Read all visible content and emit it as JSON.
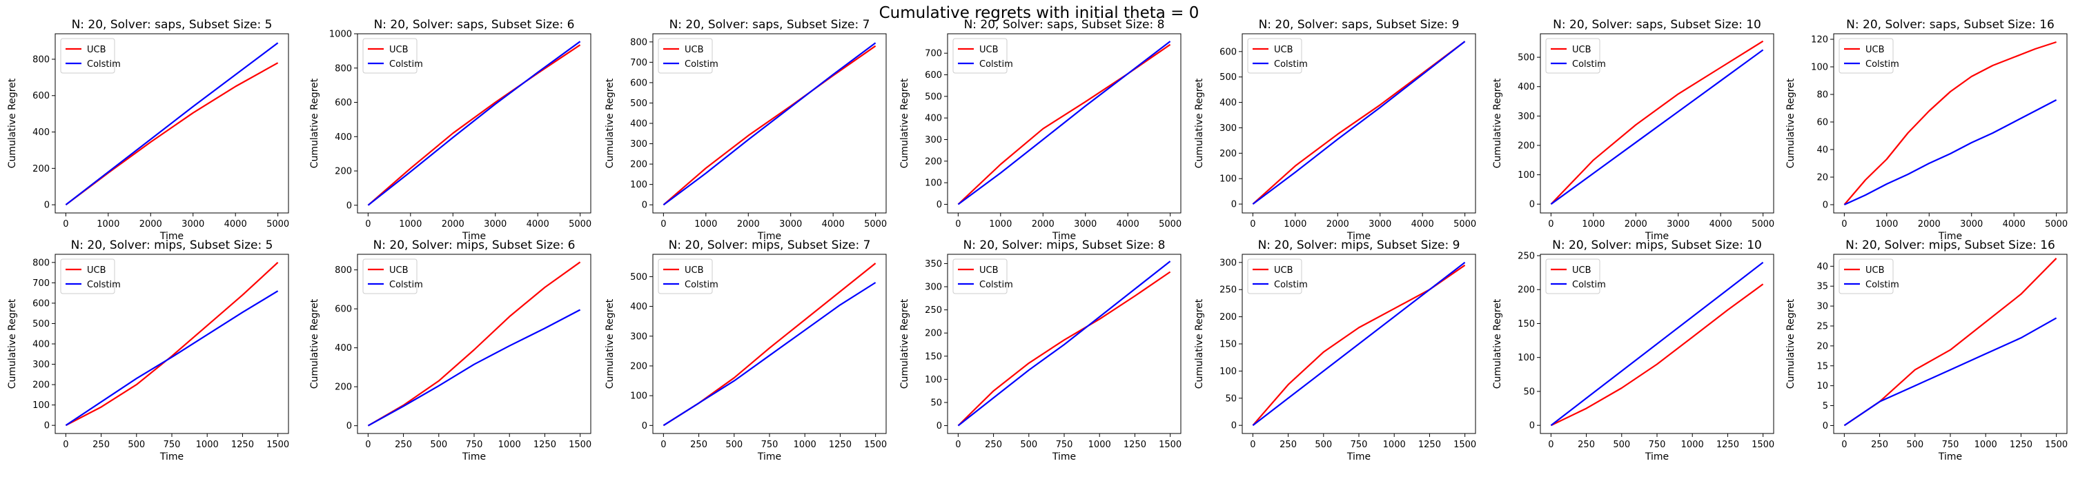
{
  "figure": {
    "title": "Cumulative regrets with initial theta = 0"
  },
  "colors": {
    "UCB": "#ff0000",
    "Colstim": "#0000ff"
  },
  "chart_data": [
    {
      "type": "line",
      "title": "N: 20, Solver: saps, Subset Size: 5",
      "xlabel": "Time",
      "ylabel": "Cumulative Regret",
      "xlim": [
        -250,
        5250
      ],
      "ylim": [
        -45,
        940
      ],
      "xticks": [
        0,
        1000,
        2000,
        3000,
        4000,
        5000
      ],
      "yticks": [
        0,
        200,
        400,
        600,
        800
      ],
      "legend": "upper-left",
      "grid": false,
      "x": [
        0,
        1000,
        2000,
        3000,
        4000,
        5000
      ],
      "series": [
        {
          "name": "UCB",
          "color": "#ff0000",
          "values": [
            0,
            175,
            345,
            505,
            650,
            780
          ]
        },
        {
          "name": "Colstim",
          "color": "#0000ff",
          "values": [
            0,
            180,
            360,
            540,
            715,
            890
          ]
        }
      ]
    },
    {
      "type": "line",
      "title": "N: 20, Solver: saps, Subset Size: 6",
      "xlabel": "Time",
      "ylabel": "Cumulative Regret",
      "xlim": [
        -250,
        5250
      ],
      "ylim": [
        -45,
        1000
      ],
      "xticks": [
        0,
        1000,
        2000,
        3000,
        4000,
        5000
      ],
      "yticks": [
        0,
        200,
        400,
        600,
        800,
        1000
      ],
      "legend": "upper-left",
      "grid": false,
      "x": [
        0,
        1000,
        2000,
        3000,
        4000,
        5000
      ],
      "series": [
        {
          "name": "UCB",
          "color": "#ff0000",
          "values": [
            0,
            215,
            420,
            600,
            770,
            935
          ]
        },
        {
          "name": "Colstim",
          "color": "#0000ff",
          "values": [
            0,
            195,
            395,
            590,
            775,
            955
          ]
        }
      ]
    },
    {
      "type": "line",
      "title": "N: 20, Solver: saps, Subset Size: 7",
      "xlabel": "Time",
      "ylabel": "Cumulative Regret",
      "xlim": [
        -250,
        5250
      ],
      "ylim": [
        -40,
        840
      ],
      "xticks": [
        0,
        1000,
        2000,
        3000,
        4000,
        5000
      ],
      "yticks": [
        0,
        100,
        200,
        300,
        400,
        500,
        600,
        700,
        800
      ],
      "legend": "upper-left",
      "grid": false,
      "x": [
        0,
        1000,
        2000,
        3000,
        4000,
        5000
      ],
      "series": [
        {
          "name": "UCB",
          "color": "#ff0000",
          "values": [
            0,
            180,
            340,
            485,
            635,
            780
          ]
        },
        {
          "name": "Colstim",
          "color": "#0000ff",
          "values": [
            0,
            155,
            320,
            480,
            640,
            795
          ]
        }
      ]
    },
    {
      "type": "line",
      "title": "N: 20, Solver: saps, Subset Size: 8",
      "xlabel": "Time",
      "ylabel": "Cumulative Regret",
      "xlim": [
        -250,
        5250
      ],
      "ylim": [
        -40,
        790
      ],
      "xticks": [
        0,
        1000,
        2000,
        3000,
        4000,
        5000
      ],
      "yticks": [
        0,
        100,
        200,
        300,
        400,
        500,
        600,
        700
      ],
      "legend": "upper-left",
      "grid": false,
      "x": [
        0,
        1000,
        2000,
        3000,
        4000,
        5000
      ],
      "series": [
        {
          "name": "UCB",
          "color": "#ff0000",
          "values": [
            0,
            185,
            350,
            475,
            605,
            740
          ]
        },
        {
          "name": "Colstim",
          "color": "#0000ff",
          "values": [
            0,
            145,
            300,
            455,
            605,
            755
          ]
        }
      ]
    },
    {
      "type": "line",
      "title": "N: 20, Solver: saps, Subset Size: 9",
      "xlabel": "Time",
      "ylabel": "Cumulative Regret",
      "xlim": [
        -250,
        5250
      ],
      "ylim": [
        -35,
        670
      ],
      "xticks": [
        0,
        1000,
        2000,
        3000,
        4000,
        5000
      ],
      "yticks": [
        0,
        100,
        200,
        300,
        400,
        500,
        600
      ],
      "legend": "upper-left",
      "grid": false,
      "x": [
        0,
        1000,
        2000,
        3000,
        4000,
        5000
      ],
      "series": [
        {
          "name": "UCB",
          "color": "#ff0000",
          "values": [
            0,
            150,
            275,
            390,
            515,
            640
          ]
        },
        {
          "name": "Colstim",
          "color": "#0000ff",
          "values": [
            0,
            125,
            255,
            380,
            510,
            640
          ]
        }
      ]
    },
    {
      "type": "line",
      "title": "N: 20, Solver: saps, Subset Size: 10",
      "xlabel": "Time",
      "ylabel": "Cumulative Regret",
      "xlim": [
        -250,
        5250
      ],
      "ylim": [
        -30,
        580
      ],
      "xticks": [
        0,
        1000,
        2000,
        3000,
        4000,
        5000
      ],
      "yticks": [
        0,
        100,
        200,
        300,
        400,
        500
      ],
      "legend": "upper-left",
      "grid": false,
      "x": [
        0,
        1000,
        2000,
        3000,
        4000,
        5000
      ],
      "series": [
        {
          "name": "UCB",
          "color": "#ff0000",
          "values": [
            0,
            150,
            270,
            375,
            465,
            555
          ]
        },
        {
          "name": "Colstim",
          "color": "#0000ff",
          "values": [
            0,
            105,
            210,
            315,
            420,
            525
          ]
        }
      ]
    },
    {
      "type": "line",
      "title": "N: 20, Solver: saps, Subset Size: 16",
      "xlabel": "Time",
      "ylabel": "Cumulative Regret",
      "xlim": [
        -250,
        5250
      ],
      "ylim": [
        -6,
        124
      ],
      "xticks": [
        0,
        1000,
        2000,
        3000,
        4000,
        5000
      ],
      "yticks": [
        0,
        20,
        40,
        60,
        80,
        100,
        120
      ],
      "legend": "upper-left",
      "grid": false,
      "x": [
        0,
        500,
        1000,
        1500,
        2000,
        2500,
        3000,
        3500,
        4000,
        4500,
        5000
      ],
      "series": [
        {
          "name": "UCB",
          "color": "#ff0000",
          "values": [
            0,
            18,
            33,
            52,
            68,
            82,
            93,
            101,
            107,
            113,
            118
          ]
        },
        {
          "name": "Colstim",
          "color": "#0000ff",
          "values": [
            0,
            7,
            15,
            22,
            30,
            37,
            45,
            52,
            60,
            68,
            76
          ]
        }
      ]
    },
    {
      "type": "line",
      "title": "N: 20, Solver: mips, Subset Size: 5",
      "xlabel": "Time",
      "ylabel": "Cumulative Regret",
      "xlim": [
        -75,
        1575
      ],
      "ylim": [
        -40,
        840
      ],
      "xticks": [
        0,
        250,
        500,
        750,
        1000,
        1250,
        1500
      ],
      "yticks": [
        0,
        100,
        200,
        300,
        400,
        500,
        600,
        700,
        800
      ],
      "legend": "upper-left",
      "grid": false,
      "x": [
        0,
        250,
        500,
        750,
        1000,
        1250,
        1500
      ],
      "series": [
        {
          "name": "UCB",
          "color": "#ff0000",
          "values": [
            0,
            90,
            200,
            340,
            490,
            640,
            800
          ]
        },
        {
          "name": "Colstim",
          "color": "#0000ff",
          "values": [
            0,
            115,
            230,
            335,
            445,
            555,
            660
          ]
        }
      ]
    },
    {
      "type": "line",
      "title": "N: 20, Solver: mips, Subset Size: 6",
      "xlabel": "Time",
      "ylabel": "Cumulative Regret",
      "xlim": [
        -75,
        1575
      ],
      "ylim": [
        -40,
        880
      ],
      "xticks": [
        0,
        250,
        500,
        750,
        1000,
        1250,
        1500
      ],
      "yticks": [
        0,
        200,
        400,
        600,
        800
      ],
      "legend": "upper-left",
      "grid": false,
      "x": [
        0,
        250,
        500,
        750,
        1000,
        1250,
        1500
      ],
      "series": [
        {
          "name": "UCB",
          "color": "#ff0000",
          "values": [
            0,
            105,
            230,
            390,
            560,
            710,
            840
          ]
        },
        {
          "name": "Colstim",
          "color": "#0000ff",
          "values": [
            0,
            100,
            205,
            315,
            410,
            500,
            595
          ]
        }
      ]
    },
    {
      "type": "line",
      "title": "N: 20, Solver: mips, Subset Size: 7",
      "xlabel": "Time",
      "ylabel": "Cumulative Regret",
      "xlim": [
        -75,
        1575
      ],
      "ylim": [
        -27,
        575
      ],
      "xticks": [
        0,
        250,
        500,
        750,
        1000,
        1250,
        1500
      ],
      "yticks": [
        0,
        100,
        200,
        300,
        400,
        500
      ],
      "legend": "upper-left",
      "grid": false,
      "x": [
        0,
        250,
        500,
        750,
        1000,
        1250,
        1500
      ],
      "series": [
        {
          "name": "UCB",
          "color": "#ff0000",
          "values": [
            0,
            75,
            160,
            260,
            355,
            450,
            545
          ]
        },
        {
          "name": "Colstim",
          "color": "#0000ff",
          "values": [
            0,
            75,
            150,
            235,
            320,
            405,
            480
          ]
        }
      ]
    },
    {
      "type": "line",
      "title": "N: 20, Solver: mips, Subset Size: 8",
      "xlabel": "Time",
      "ylabel": "Cumulative Regret",
      "xlim": [
        -75,
        1575
      ],
      "ylim": [
        -17,
        370
      ],
      "xticks": [
        0,
        250,
        500,
        750,
        1000,
        1250,
        1500
      ],
      "yticks": [
        0,
        50,
        100,
        150,
        200,
        250,
        300,
        350
      ],
      "legend": "upper-left",
      "grid": false,
      "x": [
        0,
        250,
        500,
        750,
        1000,
        1250,
        1500
      ],
      "series": [
        {
          "name": "UCB",
          "color": "#ff0000",
          "values": [
            0,
            75,
            135,
            185,
            230,
            280,
            332
          ]
        },
        {
          "name": "Colstim",
          "color": "#0000ff",
          "values": [
            0,
            60,
            120,
            175,
            235,
            295,
            355
          ]
        }
      ]
    },
    {
      "type": "line",
      "title": "N: 20, Solver: mips, Subset Size: 9",
      "xlabel": "Time",
      "ylabel": "Cumulative Regret",
      "xlim": [
        -75,
        1575
      ],
      "ylim": [
        -15,
        315
      ],
      "xticks": [
        0,
        250,
        500,
        750,
        1000,
        1250,
        1500
      ],
      "yticks": [
        0,
        50,
        100,
        150,
        200,
        250,
        300
      ],
      "legend": "upper-left",
      "grid": false,
      "x": [
        0,
        250,
        500,
        750,
        1000,
        1250,
        1500
      ],
      "series": [
        {
          "name": "UCB",
          "color": "#ff0000",
          "values": [
            0,
            75,
            135,
            180,
            215,
            250,
            295
          ]
        },
        {
          "name": "Colstim",
          "color": "#0000ff",
          "values": [
            0,
            50,
            100,
            150,
            200,
            250,
            300
          ]
        }
      ]
    },
    {
      "type": "line",
      "title": "N: 20, Solver: mips, Subset Size: 10",
      "xlabel": "Time",
      "ylabel": "Cumulative Regret",
      "xlim": [
        -75,
        1575
      ],
      "ylim": [
        -12,
        252
      ],
      "xticks": [
        0,
        250,
        500,
        750,
        1000,
        1250,
        1500
      ],
      "yticks": [
        0,
        50,
        100,
        150,
        200,
        250
      ],
      "legend": "upper-left",
      "grid": false,
      "x": [
        0,
        250,
        500,
        750,
        1000,
        1250,
        1500
      ],
      "series": [
        {
          "name": "UCB",
          "color": "#ff0000",
          "values": [
            0,
            25,
            55,
            90,
            130,
            170,
            208
          ]
        },
        {
          "name": "Colstim",
          "color": "#0000ff",
          "values": [
            0,
            40,
            80,
            120,
            160,
            200,
            240
          ]
        }
      ]
    },
    {
      "type": "line",
      "title": "N: 20, Solver: mips, Subset Size: 16",
      "xlabel": "Time",
      "ylabel": "Cumulative Regret",
      "xlim": [
        -75,
        1575
      ],
      "ylim": [
        -2,
        43
      ],
      "xticks": [
        0,
        250,
        500,
        750,
        1000,
        1250,
        1500
      ],
      "yticks": [
        0,
        5,
        10,
        15,
        20,
        25,
        30,
        35,
        40
      ],
      "legend": "upper-left",
      "grid": false,
      "x": [
        0,
        250,
        500,
        750,
        1000,
        1250,
        1500
      ],
      "series": [
        {
          "name": "UCB",
          "color": "#ff0000",
          "values": [
            0,
            6,
            14,
            19,
            26,
            33,
            42
          ]
        },
        {
          "name": "Colstim",
          "color": "#0000ff",
          "values": [
            0,
            6,
            10,
            14,
            18,
            22,
            27
          ]
        }
      ]
    }
  ]
}
